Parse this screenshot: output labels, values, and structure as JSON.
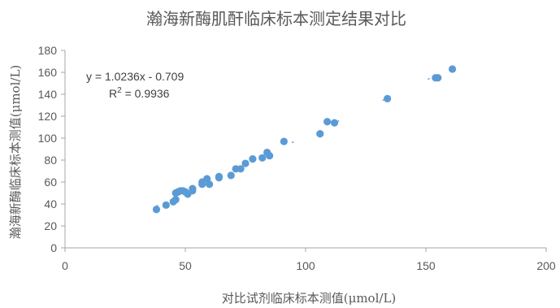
{
  "chart_data": {
    "type": "scatter",
    "title": "瀚海新酶肌酐临床标本测定结果对比",
    "xlabel": "对比试剂临床标本测值(μmol/L)",
    "ylabel": "瀚海新酶临床标本测值(μmol/L)",
    "xlim": [
      0,
      200
    ],
    "ylim": [
      0,
      180
    ],
    "x_ticks": [
      0,
      50,
      100,
      150,
      200
    ],
    "y_ticks": [
      0,
      20,
      40,
      60,
      80,
      100,
      120,
      140,
      160,
      180
    ],
    "x_tick_labels": [
      "0",
      "50",
      "100",
      "150",
      "200"
    ],
    "y_tick_labels": [
      "0",
      "20",
      "40",
      "60",
      "80",
      "100",
      "120",
      "140",
      "160",
      "180"
    ],
    "grid": false,
    "marker_color": "#5b9bd5",
    "axis_color": "#a6a6a6",
    "trendline": {
      "type": "linear",
      "slope": 1.0236,
      "intercept": -0.709,
      "equation_label": "y = 1.0236x - 0.709",
      "r2_prefix": "R",
      "r2_sup": "2",
      "r2_suffix": " = 0.9936"
    },
    "series": [
      {
        "x": [
          38,
          42,
          45,
          46,
          46,
          47,
          47,
          48,
          49,
          50,
          51,
          53,
          53,
          57,
          57,
          59,
          60,
          64,
          64,
          69,
          71,
          73,
          75,
          78,
          82,
          84,
          85,
          91,
          106,
          109,
          112,
          134,
          154,
          155,
          161
        ],
        "y": [
          35,
          39,
          42,
          44,
          50,
          51,
          51,
          52,
          52,
          51,
          49,
          52,
          54,
          58,
          60,
          63,
          58,
          64,
          65,
          66,
          72,
          72,
          77,
          81,
          82,
          87,
          84,
          97,
          104,
          115,
          114,
          136,
          155,
          155,
          163
        ]
      }
    ]
  }
}
